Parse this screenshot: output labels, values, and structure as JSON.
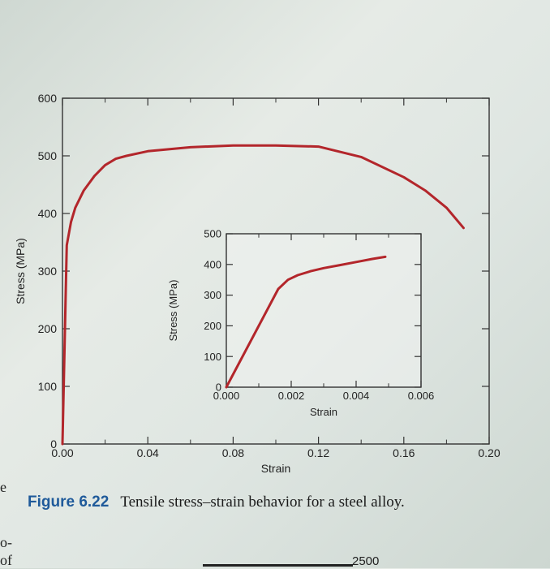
{
  "chart_data": [
    {
      "type": "line",
      "role": "main",
      "xlabel": "Strain",
      "ylabel": "Stress (MPa)",
      "xlim": [
        0,
        0.2
      ],
      "ylim": [
        0,
        600
      ],
      "xticks": [
        "0.00",
        "0.04",
        "0.08",
        "0.12",
        "0.16",
        "0.20"
      ],
      "yticks": [
        "0",
        "100",
        "200",
        "300",
        "400",
        "500",
        "600"
      ],
      "series": [
        {
          "color": "#b3262b",
          "x": [
            0.0,
            0.002,
            0.004,
            0.006,
            0.01,
            0.015,
            0.02,
            0.025,
            0.03,
            0.04,
            0.06,
            0.08,
            0.1,
            0.12,
            0.14,
            0.16,
            0.17,
            0.18,
            0.188
          ],
          "y": [
            0,
            345,
            385,
            410,
            440,
            465,
            484,
            495,
            500,
            508,
            515,
            518,
            518,
            516,
            498,
            463,
            440,
            410,
            375
          ]
        }
      ]
    },
    {
      "type": "line",
      "role": "inset",
      "xlabel": "Strain",
      "ylabel": "Stress (MPa)",
      "xlim": [
        0,
        0.006
      ],
      "ylim": [
        0,
        500
      ],
      "xticks": [
        "0.000",
        "0.002",
        "0.004",
        "0.006"
      ],
      "yticks": [
        "0",
        "100",
        "200",
        "300",
        "400",
        "500"
      ],
      "series": [
        {
          "color": "#b3262b",
          "x": [
            0.0,
            0.0016,
            0.0019,
            0.0022,
            0.0026,
            0.003,
            0.0035,
            0.004,
            0.0045,
            0.0049
          ],
          "y": [
            0,
            320,
            350,
            365,
            378,
            388,
            398,
            408,
            418,
            425
          ]
        }
      ]
    }
  ],
  "caption": {
    "label": "Figure 6.22",
    "text": "Tensile stress–strain behavior for a steel alloy."
  },
  "margin": {
    "frag1": "e",
    "frag2": "o-",
    "frag3": "of"
  },
  "bottom_value": "2500"
}
